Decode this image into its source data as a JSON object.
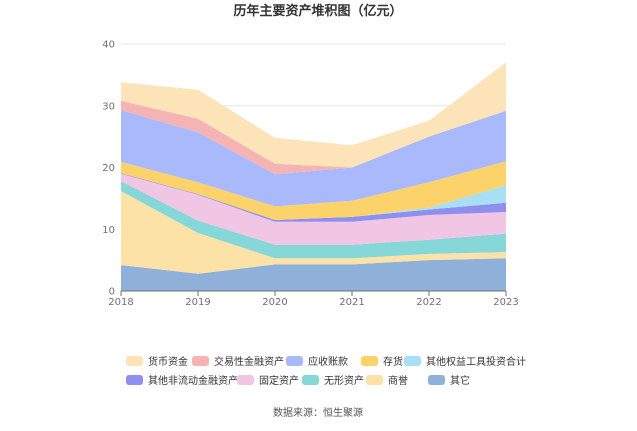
{
  "chart_data": {
    "type": "area",
    "stacked": true,
    "title": "历年主要资产堆积图（亿元）",
    "source": "数据来源：恒生聚源",
    "x": [
      "2018",
      "2019",
      "2020",
      "2021",
      "2022",
      "2023"
    ],
    "ylim": [
      0,
      40
    ],
    "yticks": [
      0,
      10,
      20,
      30,
      40
    ],
    "grid": true,
    "legend_position": "bottom",
    "series": [
      {
        "name": "其它",
        "color": "#8fb0d8",
        "values": [
          4.2,
          2.8,
          4.3,
          4.3,
          5.0,
          5.3
        ]
      },
      {
        "name": "商誉",
        "color": "#fde2a8",
        "values": [
          12.0,
          6.6,
          1.0,
          1.0,
          1.0,
          1.0
        ]
      },
      {
        "name": "无形资产",
        "color": "#86d7d7",
        "values": [
          1.6,
          2.0,
          2.2,
          2.2,
          2.3,
          3.0
        ]
      },
      {
        "name": "固定资产",
        "color": "#f1c6e4",
        "values": [
          1.2,
          4.2,
          3.7,
          3.7,
          4.0,
          3.5
        ]
      },
      {
        "name": "其他非流动金融资产",
        "color": "#8f8ff0",
        "values": [
          0.1,
          0.1,
          0.3,
          0.8,
          0.9,
          1.5
        ]
      },
      {
        "name": "其他权益工具投资合计",
        "color": "#a8dff5",
        "values": [
          0.0,
          0.0,
          0.0,
          0.0,
          0.3,
          2.8
        ]
      },
      {
        "name": "存货",
        "color": "#fbd36a",
        "values": [
          1.8,
          1.9,
          2.2,
          2.6,
          4.1,
          3.9
        ]
      },
      {
        "name": "应收账款",
        "color": "#a9b9fb",
        "values": [
          8.4,
          8.1,
          5.2,
          5.4,
          7.4,
          8.2
        ]
      },
      {
        "name": "交易性金融资产",
        "color": "#f6b3b3",
        "values": [
          1.5,
          2.2,
          1.7,
          0.0,
          0.0,
          0.0
        ]
      },
      {
        "name": "货币资金",
        "color": "#fde3b8",
        "values": [
          3.0,
          4.7,
          4.2,
          3.6,
          2.6,
          7.8
        ]
      }
    ],
    "legend_order": [
      "货币资金",
      "交易性金融资产",
      "应收账款",
      "存货",
      "其他权益工具投资合计",
      "其他非流动金融资产",
      "固定资产",
      "无形资产",
      "商誉",
      "其它"
    ]
  }
}
